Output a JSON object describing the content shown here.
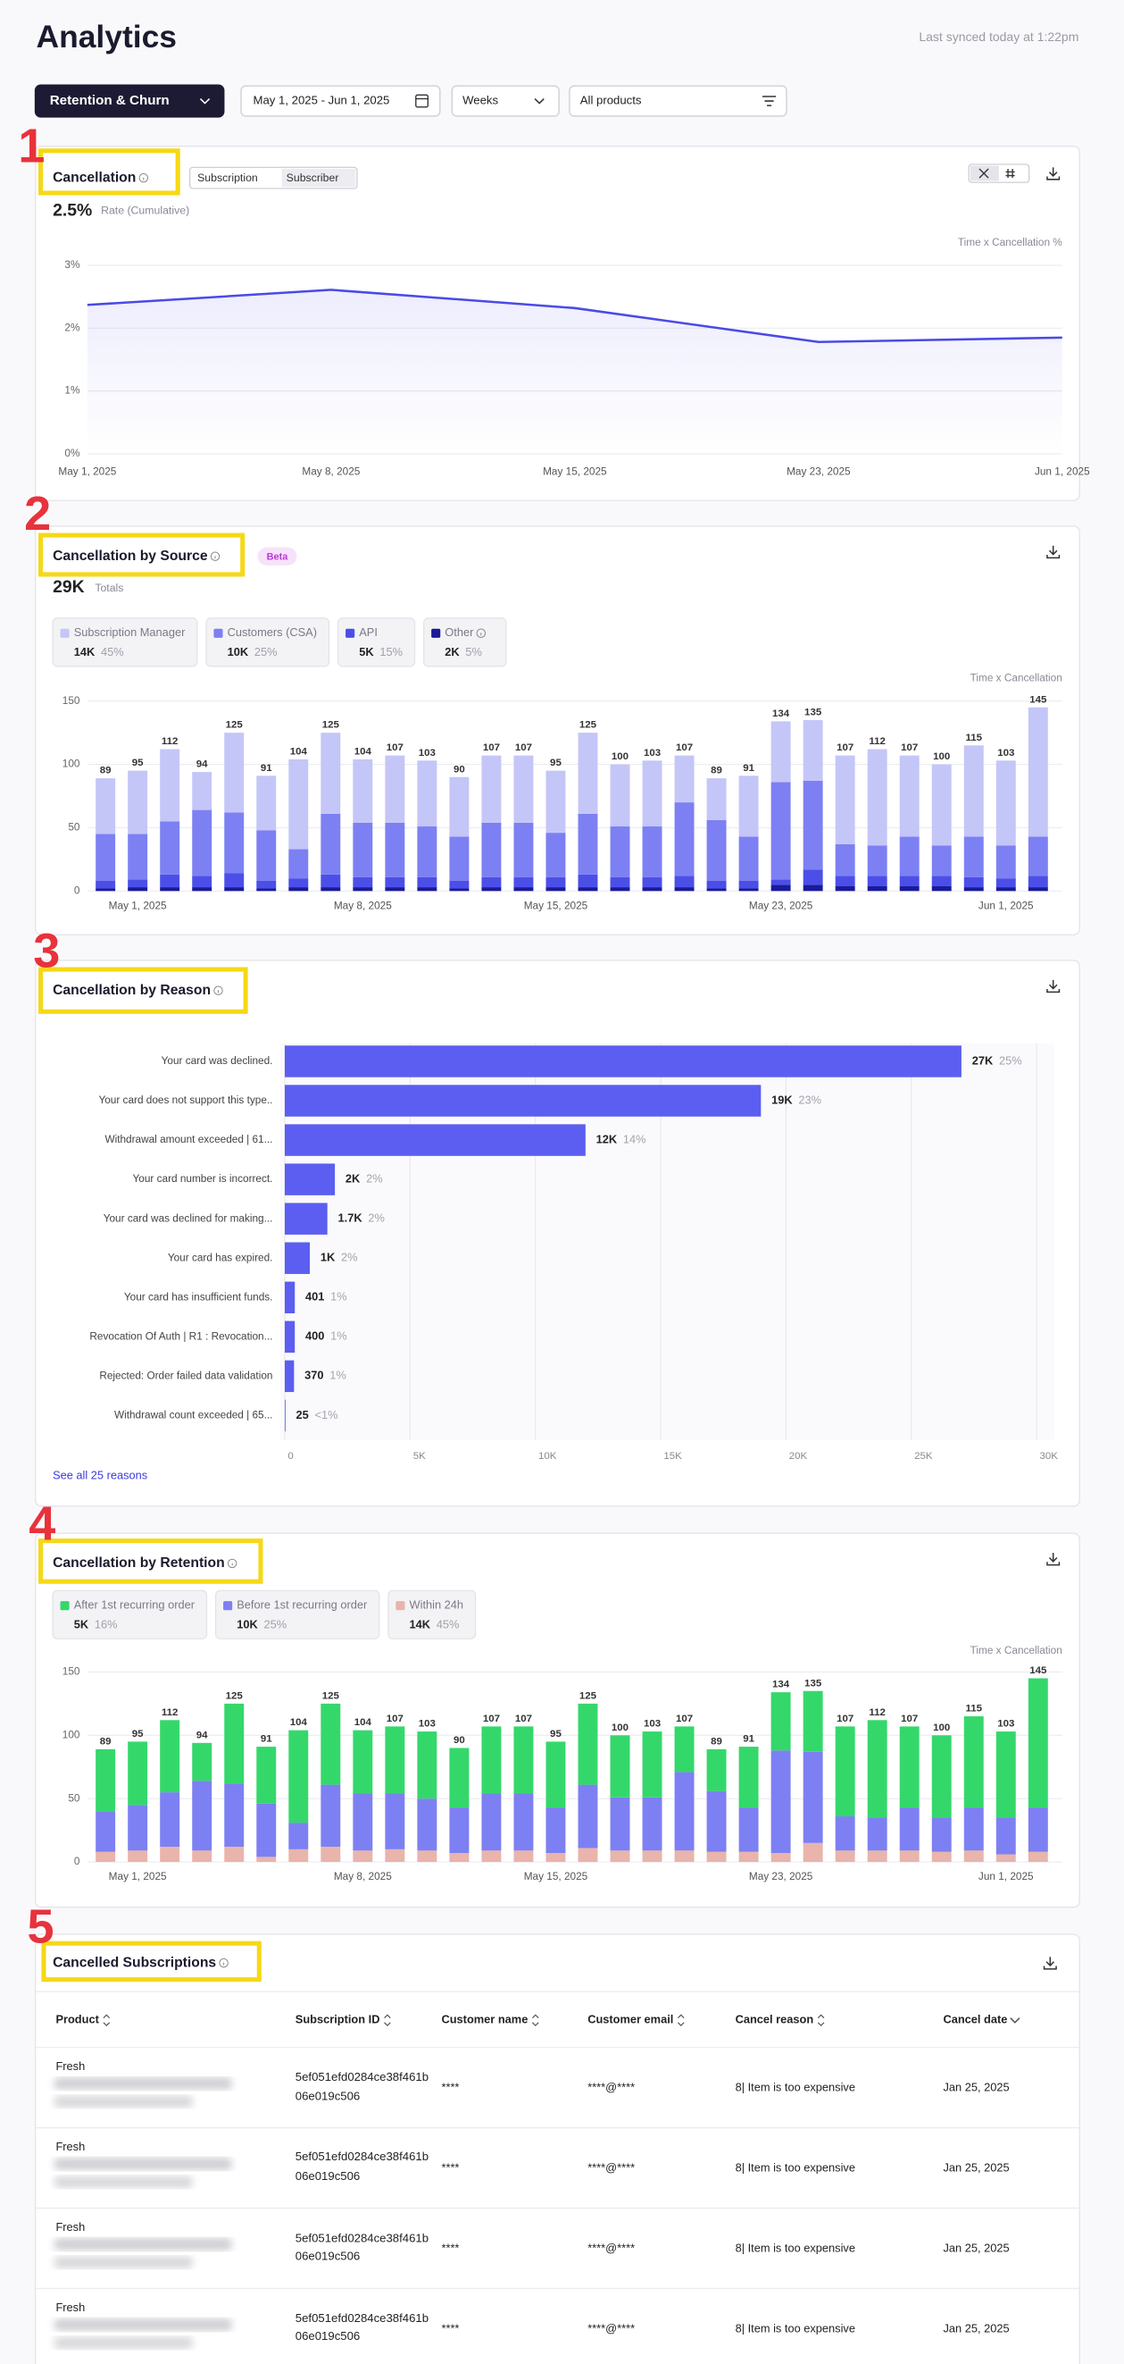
{
  "header": {
    "title": "Analytics",
    "sync": "Last synced today at 1:22pm"
  },
  "filters": {
    "view": "Retention & Churn",
    "dates": "May 1, 2025 - Jun 1, 2025",
    "interval": "Weeks",
    "products": "All products"
  },
  "annotations": [
    "1",
    "2",
    "3",
    "4",
    "5"
  ],
  "chart_data": [
    {
      "type": "line",
      "title": "Cancellation",
      "toggle": [
        "Subscription",
        "Subscriber"
      ],
      "kpi": "2.5%",
      "kpi_label": "Rate (Cumulative)",
      "axis_title": "Time x Cancellation %",
      "categories": [
        "May 1, 2025",
        "May 8, 2025",
        "May 15, 2025",
        "May 23, 2025",
        "Jun 1, 2025"
      ],
      "values": [
        2.37,
        2.61,
        2.32,
        1.78,
        1.85
      ],
      "color": "#4a4ae6",
      "ylim": [
        0,
        3
      ],
      "yticks": [
        {
          "value": 0,
          "label": "0%"
        },
        {
          "value": 1,
          "label": "1%"
        },
        {
          "value": 2,
          "label": "2%"
        },
        {
          "value": 3,
          "label": "3%"
        }
      ],
      "grid": true
    },
    {
      "type": "stacked_bar",
      "title": "Cancellation by Source",
      "badge": "Beta",
      "kpi": "29K",
      "kpi_label": "Totals",
      "axis_title": "Time x Cancellation",
      "categories": [
        null,
        "May 1, 2025",
        null,
        null,
        null,
        null,
        null,
        null,
        "May 8, 2025",
        null,
        null,
        null,
        null,
        null,
        "May 15, 2025",
        null,
        null,
        null,
        null,
        null,
        null,
        "May 23, 2025",
        null,
        null,
        null,
        null,
        null,
        null,
        "Jun 1, 2025",
        null
      ],
      "totals": [
        89,
        95,
        112,
        94,
        125,
        91,
        104,
        125,
        104,
        107,
        103,
        90,
        107,
        107,
        95,
        125,
        100,
        103,
        107,
        89,
        91,
        134,
        135,
        107,
        112,
        107,
        100,
        115,
        103,
        145
      ],
      "series": [
        {
          "name": "Subscription Manager",
          "total": "14K",
          "share": "45%",
          "color": "#c4c6f8",
          "values": [
            44,
            50,
            57,
            30,
            63,
            43,
            71,
            64,
            50,
            53,
            52,
            47,
            53,
            53,
            49,
            64,
            49,
            52,
            37,
            33,
            48,
            48,
            48,
            70,
            76,
            64,
            64,
            72,
            67,
            102
          ]
        },
        {
          "name": "Customers (CSA)",
          "total": "10K",
          "share": "25%",
          "color": "#7d80f2",
          "values": [
            37,
            36,
            42,
            52,
            48,
            40,
            23,
            48,
            43,
            43,
            40,
            35,
            43,
            43,
            35,
            48,
            40,
            40,
            58,
            48,
            35,
            77,
            70,
            25,
            24,
            31,
            24,
            32,
            26,
            31
          ]
        },
        {
          "name": "API",
          "total": "5K",
          "share": "15%",
          "color": "#4b4fe8",
          "values": [
            6,
            6,
            10,
            9,
            11,
            6,
            7,
            10,
            8,
            8,
            8,
            6,
            8,
            8,
            8,
            10,
            8,
            8,
            9,
            6,
            6,
            4,
            12,
            8,
            8,
            8,
            8,
            8,
            7,
            9
          ]
        },
        {
          "name": "Other",
          "total": "2K",
          "share": "5%",
          "color": "#1a1a9c",
          "values": [
            2,
            3,
            3,
            3,
            3,
            2,
            3,
            3,
            3,
            3,
            3,
            2,
            3,
            3,
            3,
            3,
            3,
            3,
            3,
            2,
            2,
            5,
            5,
            4,
            4,
            4,
            4,
            3,
            3,
            3
          ]
        }
      ],
      "ylim": [
        0,
        150
      ],
      "yticks": [
        0,
        50,
        100,
        150
      ],
      "grid": true
    },
    {
      "type": "hbar",
      "title": "Cancellation by Reason",
      "categories": [
        "Your card was declined.",
        "Your card does not support this type..",
        "Withdrawal amount exceeded | 61...",
        "Your card number is incorrect.",
        "Your card was declined for making...",
        "Your card has expired.",
        "Your card has insufficient funds.",
        "Revocation Of Auth | R1 : Revocation...",
        "Rejected: Order failed data validation",
        "Withdrawal count exceeded | 65..."
      ],
      "values": [
        27000,
        19000,
        12000,
        2000,
        1700,
        1000,
        401,
        400,
        370,
        25
      ],
      "value_labels": [
        "27K",
        "19K",
        "12K",
        "2K",
        "1.7K",
        "1K",
        "401",
        "400",
        "370",
        "25"
      ],
      "share_labels": [
        "25%",
        "23%",
        "14%",
        "2%",
        "2%",
        "2%",
        "1%",
        "1%",
        "1%",
        "<1%"
      ],
      "color": "#5b5ef0",
      "xlim": [
        0,
        30000
      ],
      "xticks": [
        0,
        {
          "value": 5000,
          "label": "5K"
        },
        {
          "value": 10000,
          "label": "10K"
        },
        {
          "value": 15000,
          "label": "15K"
        },
        {
          "value": 20000,
          "label": "20K"
        },
        {
          "value": 25000,
          "label": "25K"
        },
        {
          "value": 30000,
          "label": "30K"
        }
      ],
      "grid": true,
      "link": "See all 25 reasons"
    },
    {
      "type": "stacked_bar",
      "title": "Cancellation by Retention",
      "axis_title": "Time x Cancellation",
      "categories": [
        null,
        "May 1, 2025",
        null,
        null,
        null,
        null,
        null,
        null,
        "May 8, 2025",
        null,
        null,
        null,
        null,
        null,
        "May 15, 2025",
        null,
        null,
        null,
        null,
        null,
        null,
        "May 23, 2025",
        null,
        null,
        null,
        null,
        null,
        null,
        "Jun 1, 2025",
        null
      ],
      "totals": [
        89,
        95,
        112,
        94,
        125,
        91,
        104,
        125,
        104,
        107,
        103,
        90,
        107,
        107,
        95,
        125,
        100,
        103,
        107,
        89,
        91,
        134,
        135,
        107,
        112,
        107,
        100,
        115,
        103,
        145
      ],
      "series": [
        {
          "name": "After 1st recurring order",
          "total": "5K",
          "share": "16%",
          "color": "#34d86a",
          "values": [
            49,
            50,
            57,
            30,
            63,
            45,
            73,
            64,
            50,
            53,
            53,
            47,
            53,
            53,
            52,
            64,
            49,
            52,
            36,
            33,
            48,
            46,
            48,
            71,
            77,
            64,
            65,
            72,
            68,
            102
          ]
        },
        {
          "name": "Before 1st recurring order",
          "total": "10K",
          "share": "25%",
          "color": "#7d80f2",
          "values": [
            32,
            36,
            43,
            55,
            50,
            42,
            21,
            49,
            45,
            44,
            41,
            36,
            45,
            45,
            36,
            50,
            42,
            42,
            62,
            48,
            35,
            81,
            72,
            27,
            26,
            34,
            27,
            34,
            29,
            35
          ]
        },
        {
          "name": "Within 24h",
          "total": "14K",
          "share": "45%",
          "color": "#e9b4ab",
          "values": [
            8,
            9,
            12,
            9,
            12,
            4,
            10,
            12,
            9,
            10,
            9,
            7,
            9,
            9,
            7,
            11,
            9,
            9,
            9,
            8,
            8,
            7,
            15,
            9,
            9,
            9,
            8,
            9,
            6,
            8
          ]
        }
      ],
      "ylim": [
        0,
        150
      ],
      "yticks": [
        0,
        50,
        100,
        150
      ],
      "grid": true
    }
  ],
  "table": {
    "title": "Cancelled Subscriptions",
    "columns": [
      "Product",
      "Subscription ID",
      "Customer name",
      "Customer email",
      "Cancel reason",
      "Cancel date"
    ],
    "rows": [
      [
        "Fresh",
        "5ef051efd0284ce38f461b06e019c506",
        "****",
        "****@****",
        "8| Item is too expensive",
        "Jan 25, 2025"
      ],
      [
        "Fresh",
        "5ef051efd0284ce38f461b06e019c506",
        "****",
        "****@****",
        "8| Item is too expensive",
        "Jan 25, 2025"
      ],
      [
        "Fresh",
        "5ef051efd0284ce38f461b06e019c506",
        "****",
        "****@****",
        "8| Item is too expensive",
        "Jan 25, 2025"
      ],
      [
        "Fresh",
        "5ef051efd0284ce38f461b06e019c506",
        "****",
        "****@****",
        "8| Item is too expensive",
        "Jan 25, 2025"
      ]
    ]
  }
}
